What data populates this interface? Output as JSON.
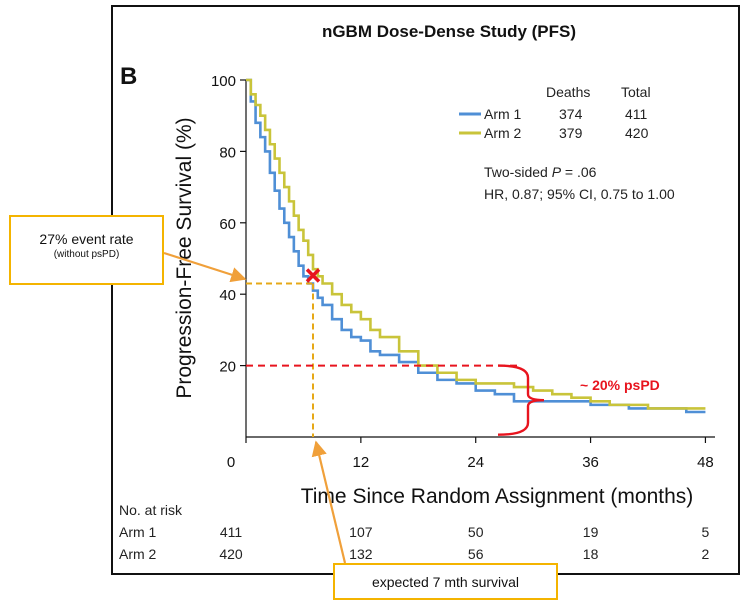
{
  "figure": {
    "title": "nGBM Dose-Dense Study (PFS)",
    "panel_label": "B"
  },
  "legend": {
    "header_deaths": "Deaths",
    "header_total": "Total",
    "rows": [
      {
        "label": "Arm 1",
        "deaths": "374",
        "total": "411",
        "color": "#4f8fd6"
      },
      {
        "label": "Arm 2",
        "deaths": "379",
        "total": "420",
        "color": "#c9c43a"
      }
    ],
    "stat_line1_prefix": "Two-sided ",
    "stat_line1_italic": "P",
    "stat_line1_suffix": " = .06",
    "stat_line2": "HR, 0.87; 95% CI, 0.75 to 1.00"
  },
  "risk_table": {
    "header": "No. at risk",
    "rows": [
      {
        "label": "Arm 1",
        "values": [
          "411",
          "107",
          "50",
          "19",
          "5"
        ]
      },
      {
        "label": "Arm 2",
        "values": [
          "420",
          "132",
          "56",
          "18",
          "2"
        ]
      }
    ]
  },
  "annotations": {
    "event_rate_main": "27% event rate",
    "event_rate_sub": "(without  psPD)",
    "survival_label": "expected 7 mth survival",
    "pspd_label": "~ 20% psPD",
    "highlight_color": "#e6a817",
    "marker_color": "#e8141e"
  },
  "chart_data": {
    "type": "line",
    "title": "nGBM Dose-Dense Study (PFS)",
    "xlabel": "Time Since Random Assignment (months)",
    "ylabel": "Progression-Free Survival (%)",
    "xlim": [
      0,
      49
    ],
    "ylim": [
      0,
      100
    ],
    "xticks": [
      0,
      12,
      24,
      36,
      48
    ],
    "yticks": [
      20,
      40,
      60,
      80,
      100
    ],
    "grid": false,
    "legend_position": "top-right",
    "series": [
      {
        "name": "Arm 1",
        "color": "#4f8fd6",
        "x": [
          0,
          0.5,
          1,
          1.5,
          2,
          2.5,
          3,
          3.5,
          4,
          4.5,
          5,
          5.5,
          6,
          6.5,
          7,
          7.5,
          8,
          9,
          10,
          11,
          12,
          13,
          14,
          16,
          18,
          20,
          22,
          24,
          26,
          28,
          30,
          32,
          34,
          36,
          38,
          40,
          42,
          44,
          46,
          48
        ],
        "y": [
          100,
          94,
          88,
          84,
          80,
          74,
          69,
          64,
          60,
          56,
          52,
          48,
          45,
          43,
          41,
          39,
          37,
          33,
          30,
          28,
          27,
          24,
          23,
          21,
          18,
          16,
          15,
          13,
          12,
          10,
          10,
          10,
          10,
          9,
          9,
          8,
          8,
          8,
          7,
          7
        ]
      },
      {
        "name": "Arm 2",
        "color": "#c9c43a",
        "x": [
          0,
          0.5,
          1,
          1.5,
          2,
          2.5,
          3,
          3.5,
          4,
          4.5,
          5,
          5.5,
          6,
          6.5,
          7,
          7.5,
          8,
          9,
          10,
          11,
          12,
          13,
          14,
          16,
          18,
          20,
          22,
          24,
          26,
          28,
          30,
          32,
          34,
          36,
          38,
          40,
          42,
          44,
          46,
          48
        ],
        "y": [
          100,
          96,
          93,
          90,
          86,
          82,
          78,
          74,
          70,
          66,
          62,
          58,
          55,
          51,
          47,
          45,
          43,
          40,
          37,
          35,
          33,
          30,
          28,
          24,
          20,
          18,
          16,
          15,
          15,
          14,
          13,
          12,
          11,
          10,
          9,
          9,
          8,
          8,
          8,
          8
        ]
      }
    ],
    "reference": {
      "event_point": {
        "x": 7,
        "y": 43
      },
      "pspd_level": 20,
      "pspd_brace_range": [
        4,
        20
      ]
    }
  }
}
